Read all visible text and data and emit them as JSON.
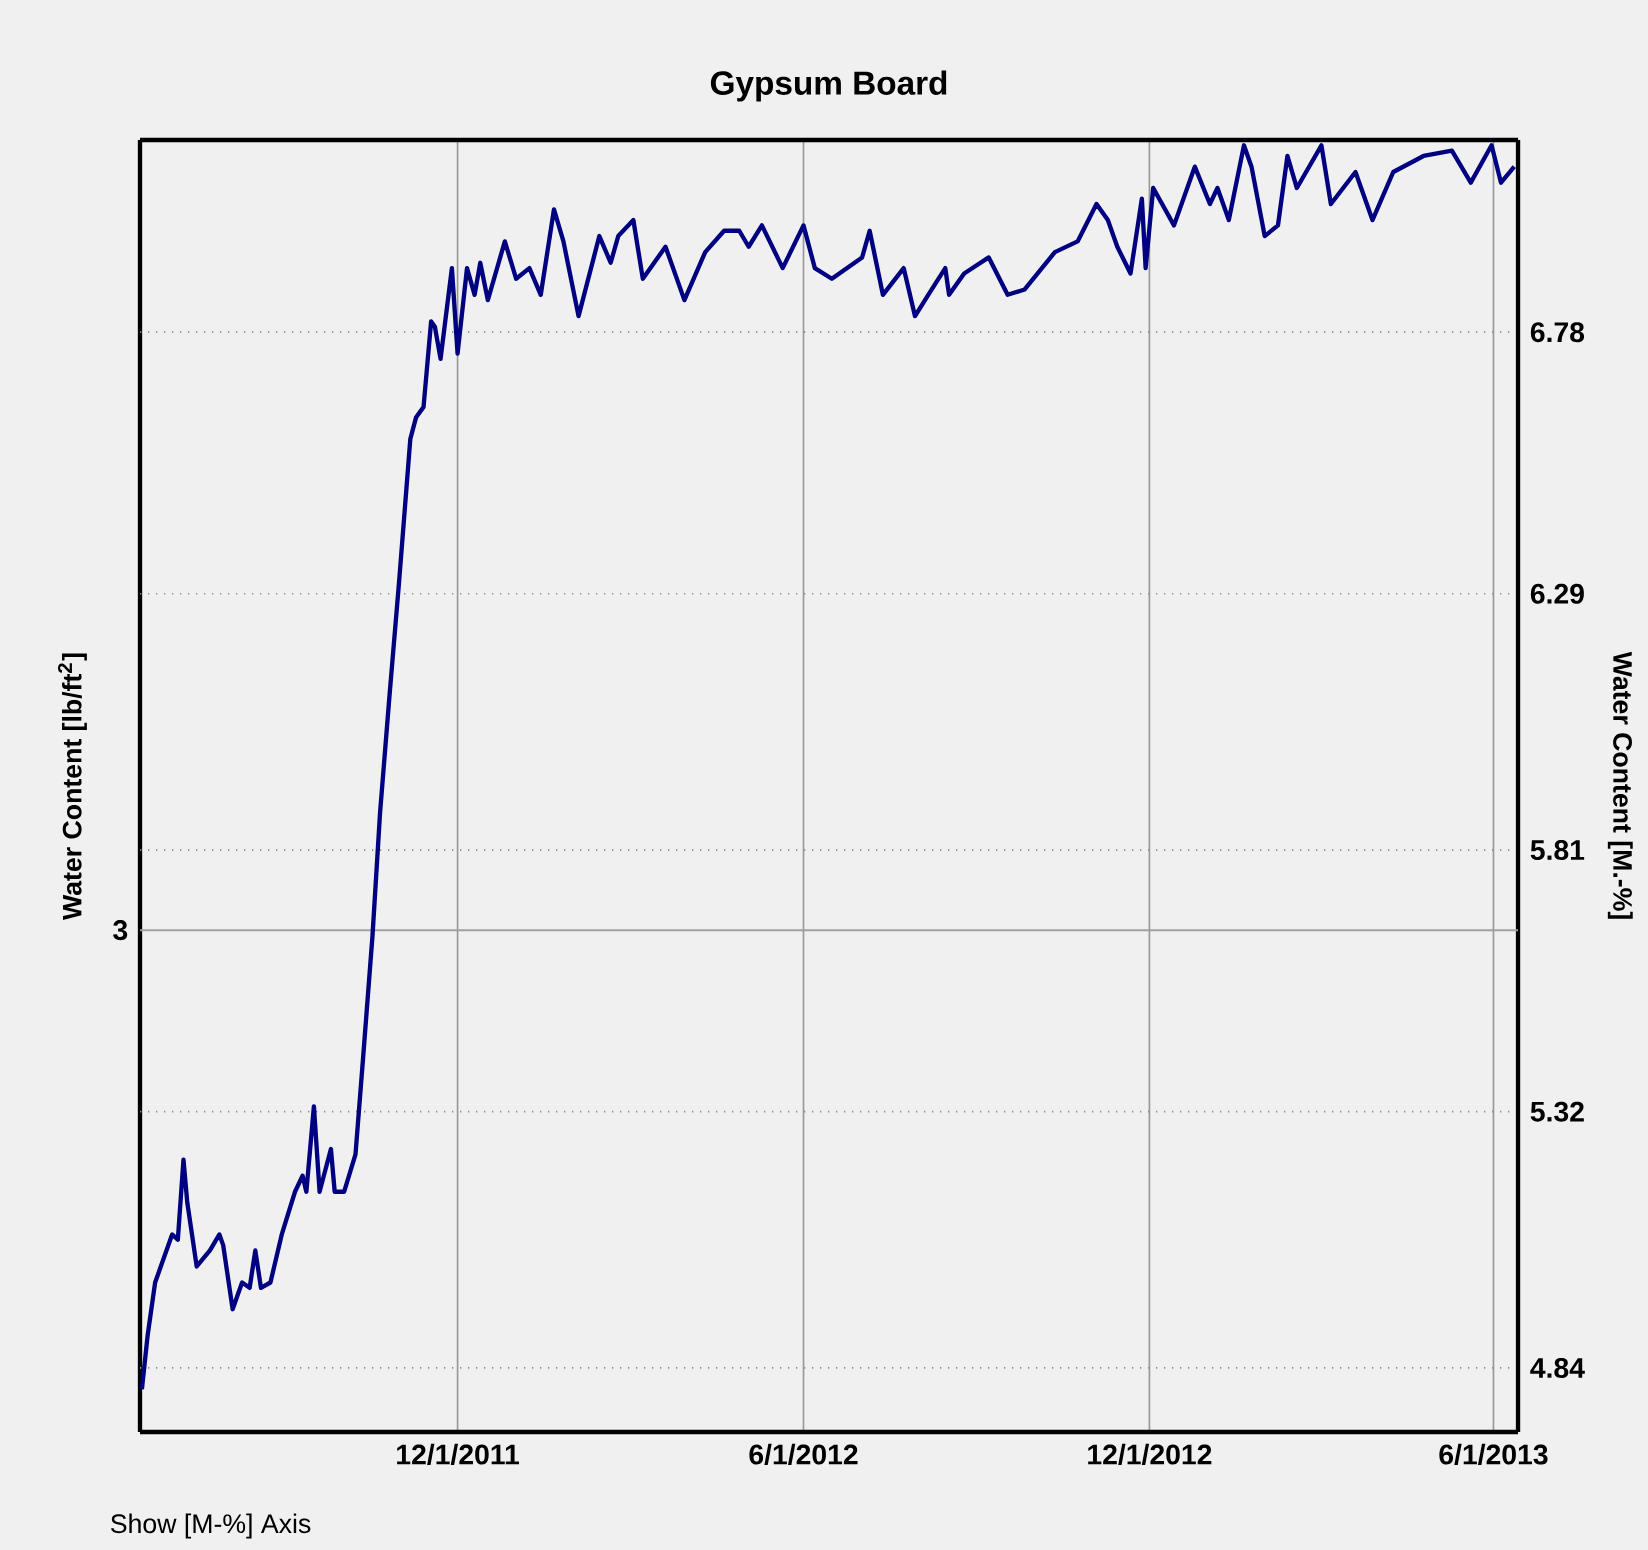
{
  "chart_data": {
    "type": "line",
    "title": "Gypsum Board",
    "ylabel": "Water Content [lb/ft$^{2}$]",
    "y2label": "Water Content [M.-%]",
    "annotations": [
      "Show [M-%] Axis",
      "3"
    ],
    "xlim": [
      "2011-06-16",
      "2013-06-14"
    ],
    "xticks": [
      {
        "value": "2011-12-01",
        "label": "12/1/2011"
      },
      {
        "value": "2012-06-01",
        "label": "6/1/2012"
      },
      {
        "value": "2012-12-01",
        "label": "12/1/2012"
      },
      {
        "value": "2013-06-01",
        "label": "6/1/2013"
      }
    ],
    "ref_lines": [
      {
        "axis": "y2",
        "value": 5.66,
        "color": "#a0a0a0"
      }
    ],
    "y2lim": [
      4.72,
      7.14
    ],
    "y2ticks": [
      4.84,
      5.32,
      5.81,
      6.29,
      6.78
    ],
    "grid": true,
    "series": [
      {
        "color": "#000080",
        "axis": "y2",
        "x": [
          "2011-06-17",
          "2011-06-20",
          "2011-06-24",
          "2011-07-03",
          "2011-07-06",
          "2011-07-09",
          "2011-07-11",
          "2011-07-16",
          "2011-07-23",
          "2011-07-28",
          "2011-07-30",
          "2011-08-04",
          "2011-08-09",
          "2011-08-13",
          "2011-08-16",
          "2011-08-19",
          "2011-08-24",
          "2011-08-30",
          "2011-09-06",
          "2011-09-10",
          "2011-09-12",
          "2011-09-16",
          "2011-09-19",
          "2011-09-25",
          "2011-09-27",
          "2011-10-02",
          "2011-10-08",
          "2011-10-12",
          "2011-10-17",
          "2011-10-21",
          "2011-10-26",
          "2011-10-31",
          "2011-11-06",
          "2011-11-09",
          "2011-11-13",
          "2011-11-17",
          "2011-11-19",
          "2011-11-22",
          "2011-11-28",
          "2011-12-01",
          "2011-12-06",
          "2011-12-10",
          "2011-12-13",
          "2011-12-17",
          "2011-12-26",
          "2012-01-01",
          "2012-01-08",
          "2012-01-14",
          "2012-01-21",
          "2012-01-26",
          "2012-02-03",
          "2012-02-14",
          "2012-02-20",
          "2012-02-24",
          "2012-03-03",
          "2012-03-08",
          "2012-03-20",
          "2012-03-30",
          "2012-04-10",
          "2012-04-20",
          "2012-04-28",
          "2012-05-03",
          "2012-05-10",
          "2012-05-21",
          "2012-06-01",
          "2012-06-07",
          "2012-06-16",
          "2012-07-02",
          "2012-07-06",
          "2012-07-13",
          "2012-07-24",
          "2012-07-30",
          "2012-08-06",
          "2012-08-15",
          "2012-08-17",
          "2012-08-25",
          "2012-09-07",
          "2012-09-17",
          "2012-09-26",
          "2012-10-12",
          "2012-10-24",
          "2012-11-03",
          "2012-11-09",
          "2012-11-14",
          "2012-11-21",
          "2012-11-27",
          "2012-11-29",
          "2012-12-03",
          "2012-12-14",
          "2012-12-25",
          "2013-01-02",
          "2013-01-06",
          "2013-01-12",
          "2013-01-20",
          "2013-01-24",
          "2013-01-31",
          "2013-02-07",
          "2013-02-12",
          "2013-02-17",
          "2013-03-02",
          "2013-03-07",
          "2013-03-20",
          "2013-03-29",
          "2013-04-09",
          "2013-04-25",
          "2013-05-10",
          "2013-05-20",
          "2013-05-31",
          "2013-06-05",
          "2013-06-12"
        ],
        "values": [
          4.8,
          4.9,
          5.0,
          5.09,
          5.08,
          5.23,
          5.15,
          5.03,
          5.06,
          5.09,
          5.07,
          4.95,
          5.0,
          4.99,
          5.06,
          4.99,
          5.0,
          5.09,
          5.17,
          5.2,
          5.17,
          5.33,
          5.17,
          5.25,
          5.17,
          5.17,
          5.24,
          5.42,
          5.65,
          5.88,
          6.1,
          6.31,
          6.58,
          6.62,
          6.64,
          6.8,
          6.79,
          6.73,
          6.9,
          6.74,
          6.9,
          6.85,
          6.91,
          6.84,
          6.95,
          6.88,
          6.9,
          6.85,
          7.01,
          6.95,
          6.81,
          6.96,
          6.91,
          6.96,
          6.99,
          6.88,
          6.94,
          6.84,
          6.93,
          6.97,
          6.97,
          6.94,
          6.98,
          6.9,
          6.98,
          6.9,
          6.88,
          6.92,
          6.97,
          6.85,
          6.9,
          6.81,
          6.85,
          6.9,
          6.85,
          6.89,
          6.92,
          6.85,
          6.86,
          6.93,
          6.95,
          7.02,
          6.99,
          6.94,
          6.89,
          7.03,
          6.9,
          7.05,
          6.98,
          7.09,
          7.02,
          7.05,
          6.99,
          7.13,
          7.09,
          6.96,
          6.98,
          7.11,
          7.05,
          7.13,
          7.02,
          7.08,
          6.99,
          7.08,
          7.11,
          7.12,
          7.06,
          7.13,
          7.06,
          7.09
        ]
      }
    ]
  }
}
